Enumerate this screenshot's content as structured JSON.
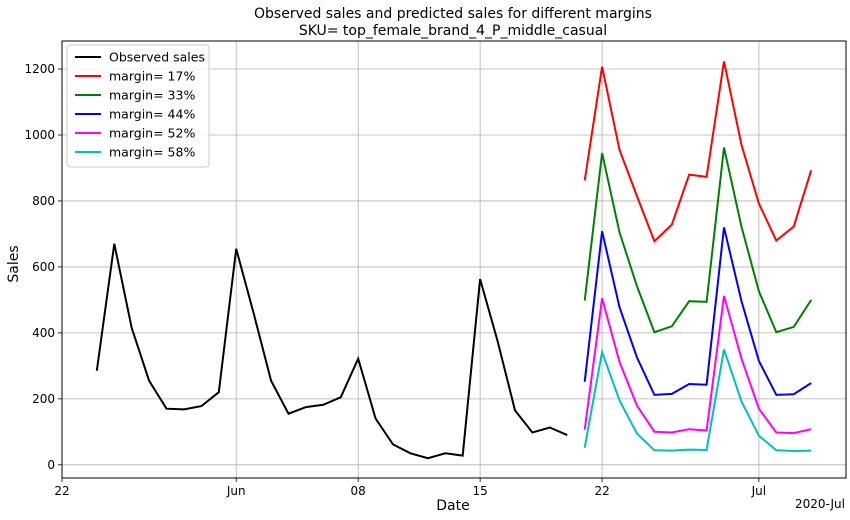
{
  "chart_data": {
    "type": "line",
    "title": "Observed sales and predicted sales for different margins",
    "subtitle": "SKU= top_female_brand_4_P_middle_casual",
    "xlabel": "Date",
    "ylabel": "Sales",
    "x_axis_offset_label": "2020-Jul",
    "xlim": [
      "2020-05-22",
      "2020-07-06"
    ],
    "ylim": [
      -40,
      1285
    ],
    "x_ticks": [
      {
        "date": "2020-05-22",
        "label": "22"
      },
      {
        "date": "2020-06-01",
        "label": "Jun"
      },
      {
        "date": "2020-06-08",
        "label": "08"
      },
      {
        "date": "2020-06-15",
        "label": "15"
      },
      {
        "date": "2020-06-22",
        "label": "22"
      },
      {
        "date": "2020-07-01",
        "label": "Jul"
      }
    ],
    "y_ticks": [
      0,
      200,
      400,
      600,
      800,
      1000,
      1200
    ],
    "grid": true,
    "legend_position": "top-left",
    "series": [
      {
        "name": "Observed sales",
        "color": "#000000",
        "x": [
          "2020-05-24",
          "2020-05-25",
          "2020-05-26",
          "2020-05-27",
          "2020-05-28",
          "2020-05-29",
          "2020-05-30",
          "2020-05-31",
          "2020-06-01",
          "2020-06-02",
          "2020-06-03",
          "2020-06-04",
          "2020-06-05",
          "2020-06-06",
          "2020-06-07",
          "2020-06-08",
          "2020-06-09",
          "2020-06-10",
          "2020-06-11",
          "2020-06-12",
          "2020-06-13",
          "2020-06-14",
          "2020-06-15",
          "2020-06-16",
          "2020-06-17",
          "2020-06-18",
          "2020-06-19",
          "2020-06-20"
        ],
        "values": [
          285,
          670,
          415,
          255,
          170,
          168,
          178,
          220,
          655,
          460,
          255,
          155,
          175,
          182,
          205,
          322,
          140,
          62,
          35,
          20,
          35,
          28,
          563,
          375,
          165,
          98,
          113,
          90
        ]
      },
      {
        "name": "margin= 17%",
        "color": "#ff0000",
        "x": [
          "2020-06-21",
          "2020-06-22",
          "2020-06-23",
          "2020-06-24",
          "2020-06-25",
          "2020-06-26",
          "2020-06-27",
          "2020-06-28",
          "2020-06-29",
          "2020-06-30",
          "2020-07-01",
          "2020-07-02",
          "2020-07-03",
          "2020-07-04"
        ],
        "values": [
          862,
          1207,
          955,
          815,
          678,
          728,
          880,
          873,
          1223,
          970,
          792,
          680,
          722,
          893
        ]
      },
      {
        "name": "margin= 33%",
        "color": "#008000",
        "x": [
          "2020-06-21",
          "2020-06-22",
          "2020-06-23",
          "2020-06-24",
          "2020-06-25",
          "2020-06-26",
          "2020-06-27",
          "2020-06-28",
          "2020-06-29",
          "2020-06-30",
          "2020-07-01",
          "2020-07-02",
          "2020-07-03",
          "2020-07-04"
        ],
        "values": [
          498,
          945,
          705,
          542,
          402,
          420,
          496,
          494,
          962,
          722,
          526,
          402,
          418,
          500
        ]
      },
      {
        "name": "margin= 44%",
        "color": "#0000ff",
        "x": [
          "2020-06-21",
          "2020-06-22",
          "2020-06-23",
          "2020-06-24",
          "2020-06-25",
          "2020-06-26",
          "2020-06-27",
          "2020-06-28",
          "2020-06-29",
          "2020-06-30",
          "2020-07-01",
          "2020-07-02",
          "2020-07-03",
          "2020-07-04"
        ],
        "values": [
          252,
          708,
          478,
          326,
          212,
          215,
          245,
          243,
          720,
          496,
          315,
          212,
          214,
          248
        ]
      },
      {
        "name": "margin= 52%",
        "color": "#ff00ff",
        "x": [
          "2020-06-21",
          "2020-06-22",
          "2020-06-23",
          "2020-06-24",
          "2020-06-25",
          "2020-06-26",
          "2020-06-27",
          "2020-06-28",
          "2020-06-29",
          "2020-06-30",
          "2020-07-01",
          "2020-07-02",
          "2020-07-03",
          "2020-07-04"
        ],
        "values": [
          106,
          505,
          312,
          180,
          100,
          98,
          108,
          104,
          512,
          322,
          170,
          98,
          96,
          108
        ]
      },
      {
        "name": "margin= 58%",
        "color": "#00bfbf",
        "x": [
          "2020-06-21",
          "2020-06-22",
          "2020-06-23",
          "2020-06-24",
          "2020-06-25",
          "2020-06-26",
          "2020-06-27",
          "2020-06-28",
          "2020-06-29",
          "2020-06-30",
          "2020-07-01",
          "2020-07-02",
          "2020-07-03",
          "2020-07-04"
        ],
        "values": [
          52,
          342,
          195,
          95,
          44,
          43,
          46,
          45,
          350,
          192,
          88,
          44,
          42,
          43
        ]
      }
    ]
  }
}
